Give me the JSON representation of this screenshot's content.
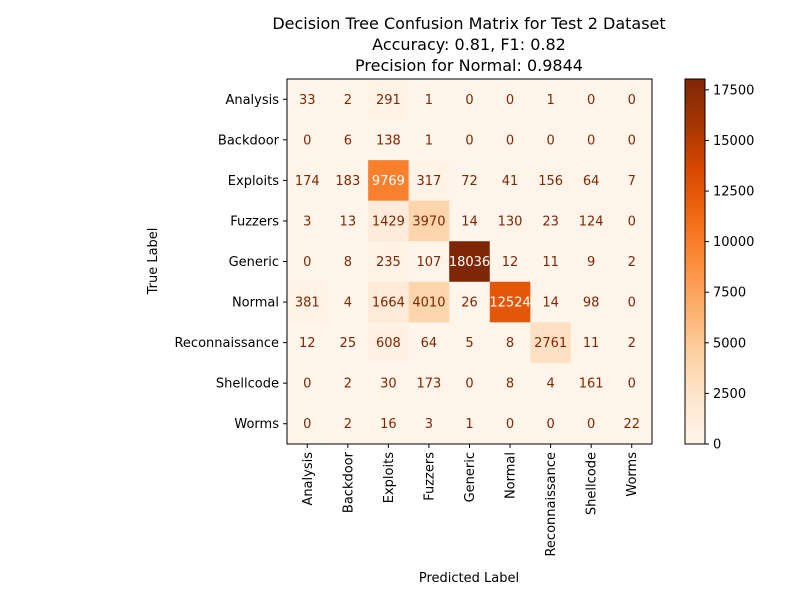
{
  "chart_data": {
    "type": "heatmap",
    "title_lines": [
      "Decision Tree Confusion Matrix for Test 2 Dataset",
      "Accuracy: 0.81, F1: 0.82",
      "Precision for Normal: 0.9844"
    ],
    "xlabel": "Predicted Label",
    "ylabel": "True Label",
    "x_categories": [
      "Analysis",
      "Backdoor",
      "Exploits",
      "Fuzzers",
      "Generic",
      "Normal",
      "Reconnaissance",
      "Shellcode",
      "Worms"
    ],
    "y_categories": [
      "Analysis",
      "Backdoor",
      "Exploits",
      "Fuzzers",
      "Generic",
      "Normal",
      "Reconnaissance",
      "Shellcode",
      "Worms"
    ],
    "values": [
      [
        33,
        2,
        291,
        1,
        0,
        0,
        1,
        0,
        0
      ],
      [
        0,
        6,
        138,
        1,
        0,
        0,
        0,
        0,
        0
      ],
      [
        174,
        183,
        9769,
        317,
        72,
        41,
        156,
        64,
        7
      ],
      [
        3,
        13,
        1429,
        3970,
        14,
        130,
        23,
        124,
        0
      ],
      [
        0,
        8,
        235,
        107,
        18036,
        12,
        11,
        9,
        2
      ],
      [
        381,
        4,
        1664,
        4010,
        26,
        12524,
        14,
        98,
        0
      ],
      [
        12,
        25,
        608,
        64,
        5,
        8,
        2761,
        11,
        2
      ],
      [
        0,
        2,
        30,
        173,
        0,
        8,
        4,
        161,
        0
      ],
      [
        0,
        2,
        16,
        3,
        1,
        0,
        0,
        0,
        22
      ]
    ],
    "colormap": "Oranges",
    "color_range": [
      0,
      18036
    ],
    "colorbar_ticks": [
      0,
      2500,
      5000,
      7500,
      10000,
      12500,
      15000,
      17500
    ],
    "text_color_dark": "#7f2704",
    "text_color_light": "#ffffff"
  }
}
